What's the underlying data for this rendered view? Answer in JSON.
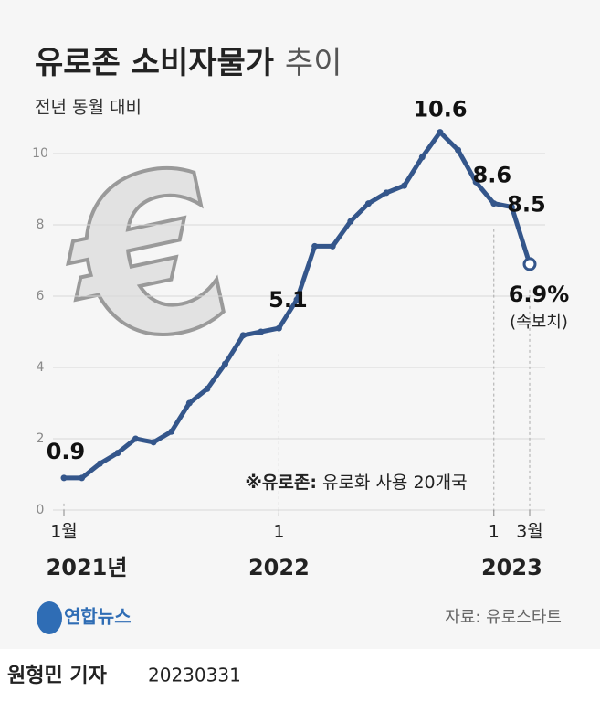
{
  "chart_data": {
    "type": "line",
    "title": "유로존 소비자물가",
    "title_suffix": "추이",
    "subtitle": "전년 동월 대비",
    "categories": [
      "1월",
      null,
      null,
      null,
      null,
      null,
      null,
      null,
      null,
      null,
      null,
      null,
      "1",
      null,
      null,
      null,
      null,
      null,
      null,
      null,
      null,
      null,
      null,
      null,
      "1",
      null,
      "3월"
    ],
    "year_labels": [
      "2021년",
      "2022",
      "2023"
    ],
    "values": [
      0.9,
      0.9,
      1.3,
      1.6,
      2.0,
      1.9,
      2.2,
      3.0,
      3.4,
      4.1,
      4.9,
      5.0,
      5.1,
      5.9,
      7.4,
      7.4,
      8.1,
      8.6,
      8.9,
      9.1,
      9.9,
      10.6,
      10.1,
      9.2,
      8.6,
      8.5,
      6.9
    ],
    "value_labels": [
      "0.9",
      null,
      null,
      null,
      null,
      null,
      null,
      null,
      null,
      null,
      null,
      null,
      "5.1",
      null,
      null,
      null,
      null,
      null,
      null,
      null,
      null,
      "10.6",
      null,
      null,
      "8.6",
      "8.5",
      "6.9%"
    ],
    "last_note": "(속보치)",
    "color": "#34568b",
    "ylim": [
      0,
      11
    ],
    "yticks": [
      0,
      2,
      4,
      6,
      8,
      10
    ],
    "grid": true,
    "note_label": "※유로존:",
    "note_text": "유로화 사용 20개국",
    "source": "자료: 유로스타트",
    "logo": "연합뉴스",
    "byline": "원형민 기자",
    "date": "20230331"
  }
}
